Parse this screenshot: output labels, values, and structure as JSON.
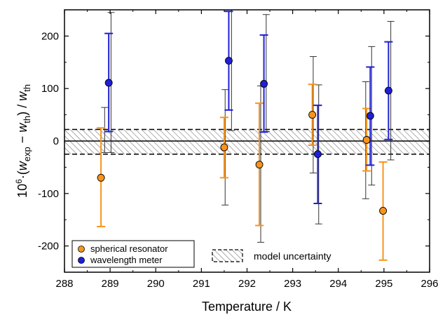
{
  "chart_data": {
    "type": "scatter",
    "xlabel": "Temperature / K",
    "ylabel_parts": {
      "prefix": "10",
      "exp": "6",
      "mid": "·(",
      "w1": "w",
      "sub1": "exp",
      "minus": " − ",
      "w2": "w",
      "sub2": "th",
      "close": ") / ",
      "w3": "w",
      "sub3": "th"
    },
    "xlim": [
      288,
      296
    ],
    "ylim": [
      -250,
      250
    ],
    "xticks": [
      "288",
      "289",
      "290",
      "291",
      "292",
      "293",
      "294",
      "295",
      "296"
    ],
    "yticks": [
      "-200",
      "-100",
      "0",
      "100",
      "200"
    ],
    "series": [
      {
        "name": "spherical resonator",
        "color": "#f7941d",
        "points": [
          {
            "x": 288.8,
            "y": -70,
            "lo": -163,
            "hi": 25
          },
          {
            "x": 291.5,
            "y": -12,
            "lo": -70,
            "hi": 45
          },
          {
            "x": 292.27,
            "y": -45,
            "lo": -161,
            "hi": 72
          },
          {
            "x": 293.43,
            "y": 50,
            "lo": -8,
            "hi": 108
          },
          {
            "x": 294.62,
            "y": 2,
            "lo": -57,
            "hi": 62
          },
          {
            "x": 294.98,
            "y": -133,
            "lo": -227,
            "hi": -40
          }
        ],
        "outer_bars": [
          {
            "x": 288.88,
            "lo": -22,
            "hi": 64
          },
          {
            "x": 291.52,
            "lo": -122,
            "hi": 98
          },
          {
            "x": 292.3,
            "lo": -193,
            "hi": 105
          },
          {
            "x": 293.45,
            "lo": -61,
            "hi": 161
          },
          {
            "x": 294.6,
            "lo": -110,
            "hi": 113
          }
        ]
      },
      {
        "name": "wavelength meter",
        "color": "#1f1fd6",
        "points": [
          {
            "x": 288.97,
            "y": 111,
            "lo": 18,
            "hi": 205
          },
          {
            "x": 291.6,
            "y": 153,
            "lo": 59,
            "hi": 247
          },
          {
            "x": 292.37,
            "y": 109,
            "lo": 17,
            "hi": 202
          },
          {
            "x": 293.55,
            "y": -25,
            "lo": -119,
            "hi": 68
          },
          {
            "x": 294.7,
            "y": 48,
            "lo": -46,
            "hi": 141
          },
          {
            "x": 295.1,
            "y": 96,
            "lo": 3,
            "hi": 189
          }
        ],
        "outer_bars": [
          {
            "x": 289.02,
            "lo": -22,
            "hi": 245
          },
          {
            "x": 291.66,
            "lo": 20,
            "hi": 250
          },
          {
            "x": 292.42,
            "lo": 18,
            "hi": 241
          },
          {
            "x": 293.57,
            "lo": -158,
            "hi": 107
          },
          {
            "x": 294.73,
            "lo": -84,
            "hi": 180
          },
          {
            "x": 295.15,
            "lo": -36,
            "hi": 228
          }
        ]
      }
    ],
    "model_uncertainty_band": [
      -25,
      22
    ],
    "legend": {
      "entries": [
        "spherical resonator",
        "wavelength meter"
      ],
      "band_label": "model  uncertainty"
    }
  }
}
